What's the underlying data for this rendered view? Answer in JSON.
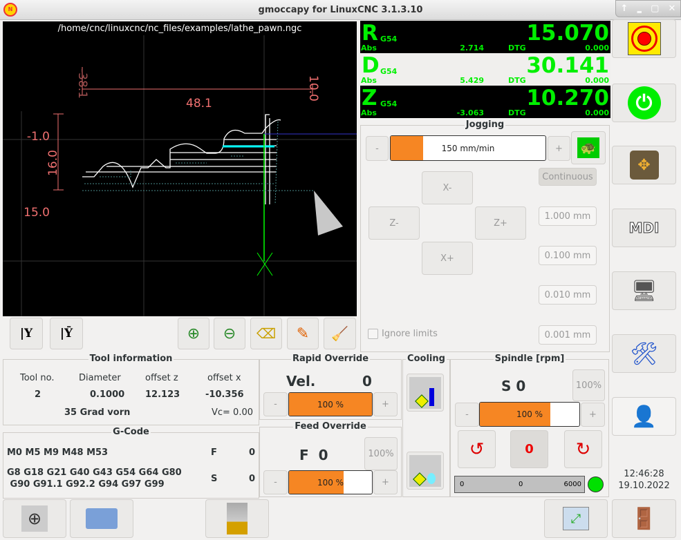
{
  "window": {
    "title": "gmoccapy for LinuxCNC  3.1.3.10",
    "controls": [
      "↑",
      "‗",
      "▢",
      "✕"
    ]
  },
  "preview": {
    "file": "/home/cnc/linuxcnc/nc_files/examples/lathe_pawn.ngc",
    "dims": {
      "x_left": "-38.1",
      "x_right": "10.0",
      "x_len": "48.1",
      "z_top": "-1.0",
      "z_len": "16.0",
      "z_bottom": "15.0"
    }
  },
  "preview_toolbar": [
    "view-y",
    "view-y-rotated",
    "zoom-in",
    "zoom-out",
    "delete-limits",
    "edit",
    "clear-plot"
  ],
  "dro": [
    {
      "axis": "R",
      "system": "G54",
      "value": "15.070",
      "abs_label": "Abs",
      "abs": "2.714",
      "dtg_label": "DTG",
      "dtg": "0.000",
      "selected": false
    },
    {
      "axis": "D",
      "system": "G54",
      "value": "30.141",
      "abs_label": "Abs",
      "abs": "5.429",
      "dtg_label": "DTG",
      "dtg": "0.000",
      "selected": true
    },
    {
      "axis": "Z",
      "system": "G54",
      "value": "10.270",
      "abs_label": "Abs",
      "abs": "-3.063",
      "dtg_label": "DTG",
      "dtg": "0.000",
      "selected": false
    }
  ],
  "jogging": {
    "title": "Jogging",
    "minus": "-",
    "plus": "+",
    "speed": "150 mm/min",
    "speed_fraction": 0.21,
    "buttons": {
      "xm": "X-",
      "zm": "Z-",
      "zp": "Z+",
      "xp": "X+"
    },
    "increments": [
      "Continuous",
      "1.000 mm",
      "0.100 mm",
      "0.010 mm",
      "0.001 mm"
    ],
    "ignore_limits": "Ignore limits",
    "ignore_limits_checked": false
  },
  "tool": {
    "title": "Tool information",
    "headers": [
      "Tool no.",
      "Diameter",
      "offset z",
      "offset x"
    ],
    "values": [
      "2",
      "0.1000",
      "12.123",
      "-10.356"
    ],
    "description": "35 Grad vorn",
    "vc": "Vc= 0.00"
  },
  "gcode": {
    "title": "G-Code",
    "mcodes": "M0 M5 M9 M48 M53",
    "gcodes1": "G8 G18 G21 G40 G43 G54 G64 G80",
    "gcodes2": " G90 G91.1 G92.2 G94 G97 G99",
    "f_label": "F",
    "f": "0",
    "s_label": "S",
    "s": "0"
  },
  "rapid": {
    "title": "Rapid Override",
    "vel_label": "Vel.",
    "vel": "0",
    "value": "100 %",
    "fraction": 1.0,
    "minus": "-",
    "plus": "+"
  },
  "feed": {
    "title": "Feed Override",
    "label": "F  0",
    "reset": "100%",
    "value": "100 %",
    "fraction": 0.66,
    "minus": "-",
    "plus": "+"
  },
  "cooling": {
    "title": "Cooling"
  },
  "spindle": {
    "title": "Spindle [rpm]",
    "s": "S 0",
    "reset": "100%",
    "value": "100 %",
    "fraction": 0.71,
    "minus": "-",
    "plus": "+",
    "gauge_min": "0",
    "gauge_value": "0",
    "gauge_max": "6000",
    "status_color": "#00e000"
  },
  "clock": {
    "time": "12:46:28",
    "date": "19.10.2022"
  }
}
